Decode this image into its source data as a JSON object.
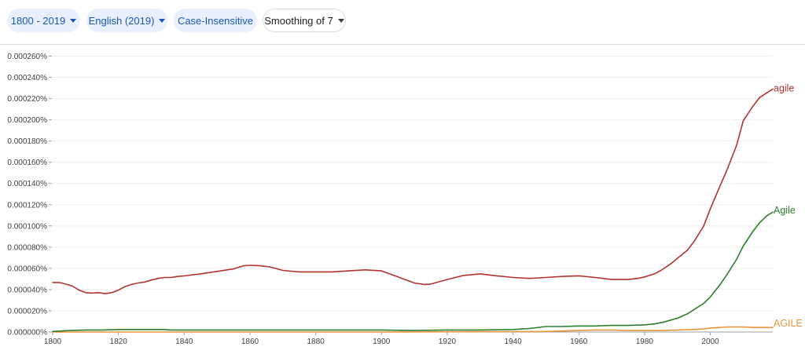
{
  "toolbar": {
    "year_range": "1800 - 2019",
    "corpus": "English (2019)",
    "case_option": "Case-Insensitive",
    "smoothing": "Smoothing of 7"
  },
  "colors": {
    "agile": "#b3332f",
    "Agile": "#2e7d2e",
    "AGILE": "#e8953a",
    "chip_fill": "#e8f0fe",
    "chip_text": "#1a57b8"
  },
  "chart_data": {
    "type": "line",
    "xlim": [
      1800,
      2019
    ],
    "ylim": [
      0,
      0.00027
    ],
    "x_ticks": [
      1800,
      1820,
      1840,
      1860,
      1880,
      1900,
      1920,
      1940,
      1960,
      1980,
      2000
    ],
    "x_tick_labels": [
      "1800",
      "1820",
      "1840",
      "1860",
      "1880",
      "1900",
      "1920",
      "1940",
      "1960",
      "1980",
      "2000"
    ],
    "y_ticks": [
      0,
      2e-05,
      4e-05,
      6e-05,
      8e-05,
      0.0001,
      0.00012,
      0.00014,
      0.00016,
      0.00018,
      0.0002,
      0.00022,
      0.00024,
      0.00026
    ],
    "y_tick_labels": [
      "0.000000%",
      "0.000020%",
      "0.000040%",
      "0.000060%",
      "0.000080%",
      "0.000100%",
      "0.000120%",
      "0.000140%",
      "0.000160%",
      "0.000180%",
      "0.000200%",
      "0.000220%",
      "0.000240%",
      "0.000260%"
    ],
    "grid": true,
    "legend": "end-of-line labels",
    "series": [
      {
        "name": "agile",
        "x": [
          1800,
          1802,
          1804,
          1806,
          1808,
          1810,
          1812,
          1814,
          1816,
          1818,
          1820,
          1822,
          1824,
          1826,
          1828,
          1830,
          1832,
          1834,
          1836,
          1838,
          1840,
          1845,
          1850,
          1855,
          1858,
          1860,
          1863,
          1866,
          1870,
          1875,
          1880,
          1885,
          1890,
          1895,
          1900,
          1905,
          1910,
          1913,
          1915,
          1920,
          1925,
          1930,
          1935,
          1940,
          1945,
          1950,
          1955,
          1960,
          1965,
          1970,
          1975,
          1978,
          1980,
          1983,
          1985,
          1988,
          1990,
          1993,
          1995,
          1998,
          2000,
          2003,
          2005,
          2008,
          2010,
          2013,
          2015,
          2017,
          2019
        ],
        "y": [
          4.67e-05,
          4.67e-05,
          4.52e-05,
          4.33e-05,
          3.95e-05,
          3.71e-05,
          3.67e-05,
          3.71e-05,
          3.62e-05,
          3.71e-05,
          3.95e-05,
          4.28e-05,
          4.48e-05,
          4.62e-05,
          4.71e-05,
          4.9e-05,
          5.05e-05,
          5.14e-05,
          5.14e-05,
          5.24e-05,
          5.29e-05,
          5.48e-05,
          5.71e-05,
          5.95e-05,
          6.24e-05,
          6.29e-05,
          6.24e-05,
          6.14e-05,
          5.81e-05,
          5.67e-05,
          5.67e-05,
          5.67e-05,
          5.76e-05,
          5.86e-05,
          5.76e-05,
          5.19e-05,
          4.62e-05,
          4.48e-05,
          4.52e-05,
          4.95e-05,
          5.33e-05,
          5.48e-05,
          5.3e-05,
          5.14e-05,
          5.05e-05,
          5.14e-05,
          5.24e-05,
          5.3e-05,
          5.14e-05,
          4.95e-05,
          4.95e-05,
          5.05e-05,
          5.19e-05,
          5.48e-05,
          5.81e-05,
          6.43e-05,
          6.95e-05,
          7.7e-05,
          8.5e-05,
          0.0001,
          0.000116,
          0.000138,
          0.000152,
          0.000176,
          0.000199,
          0.000213,
          0.000221,
          0.000225,
          0.000229
        ]
      },
      {
        "name": "Agile",
        "x": [
          1800,
          1805,
          1810,
          1815,
          1820,
          1825,
          1830,
          1834,
          1836,
          1840,
          1850,
          1860,
          1870,
          1880,
          1890,
          1900,
          1910,
          1920,
          1930,
          1940,
          1945,
          1950,
          1955,
          1960,
          1965,
          1970,
          1975,
          1980,
          1983,
          1986,
          1990,
          1993,
          1995,
          1998,
          2000,
          2003,
          2005,
          2008,
          2010,
          2013,
          2015,
          2017,
          2019
        ],
        "y": [
          5e-07,
          1.4e-06,
          1.9e-06,
          1.9e-06,
          2.4e-06,
          2.4e-06,
          2.4e-06,
          2.4e-06,
          1.9e-06,
          1.9e-06,
          1.9e-06,
          1.9e-06,
          1.9e-06,
          1.9e-06,
          1.9e-06,
          1.9e-06,
          1.4e-06,
          1.9e-06,
          1.9e-06,
          2.4e-06,
          3.3e-06,
          5.2e-06,
          5.2e-06,
          5.7e-06,
          5.7e-06,
          6.2e-06,
          6.2e-06,
          6.7e-06,
          7.6e-06,
          9.5e-06,
          1.3e-05,
          1.71e-05,
          2.1e-05,
          2.7e-05,
          3.3e-05,
          4.48e-05,
          5.38e-05,
          6.86e-05,
          8.1e-05,
          9.5e-05,
          0.000103,
          0.000109,
          0.000113
        ]
      },
      {
        "name": "AGILE",
        "x": [
          1800,
          1850,
          1900,
          1950,
          1960,
          1965,
          1970,
          1975,
          1980,
          1985,
          1990,
          1995,
          1998,
          2000,
          2003,
          2005,
          2008,
          2010,
          2013,
          2015,
          2019
        ],
        "y": [
          0,
          0,
          0,
          5e-07,
          1.4e-06,
          1.9e-06,
          1.9e-06,
          1.4e-06,
          1.4e-06,
          1.4e-06,
          1.9e-06,
          2.4e-06,
          2.9e-06,
          3.8e-06,
          4.3e-06,
          4.8e-06,
          4.8e-06,
          4.8e-06,
          4.3e-06,
          4.3e-06,
          4.3e-06
        ]
      }
    ]
  }
}
